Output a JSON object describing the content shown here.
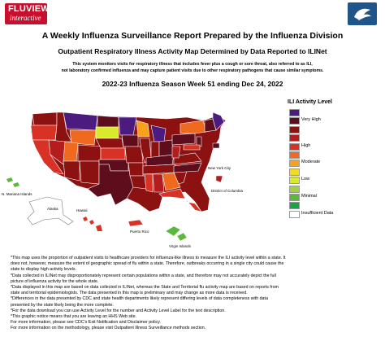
{
  "logo": {
    "line1": "FLUVIEW",
    "line2": "interactive"
  },
  "header": {
    "title": "A Weekly Influenza Surveillance Report Prepared by the Influenza Division",
    "subtitle": "Outpatient Respiratory Illness Activity Map Determined by Data Reported to ILINet",
    "desc_line1": "This system monitors visits for respiratory illness that includes fever plus a cough or sore throat, also referred to as ILI,",
    "desc_line2": "not laboratory confirmed influenza and may capture patient visits due to other respiratory pathogens that cause similar symptoms.",
    "week": "2022-23 Influenza Season Week 51 ending Dec 24, 2022"
  },
  "legend": {
    "title": "ILI Activity Level",
    "items": [
      {
        "label": "",
        "color": "#4b1b7f"
      },
      {
        "label": "Very High",
        "color": "#5d0d1b"
      },
      {
        "label": "",
        "color": "#8c1212"
      },
      {
        "label": "",
        "color": "#b31d1d"
      },
      {
        "label": "High",
        "color": "#d73225"
      },
      {
        "label": "",
        "color": "#ef6a1e"
      },
      {
        "label": "Moderate",
        "color": "#f7a21b"
      },
      {
        "label": "",
        "color": "#f5d91e"
      },
      {
        "label": "Low",
        "color": "#d8ea2a"
      },
      {
        "label": "",
        "color": "#9fd140"
      },
      {
        "label": "Minimal",
        "color": "#5cb83b"
      },
      {
        "label": "",
        "color": "#18a548"
      },
      {
        "label": "Insufficient Data",
        "color": "#ffffff"
      }
    ]
  },
  "map_labels": {
    "new_york_city": "New York City",
    "dc": "District of Columbia",
    "mariana": "N. Mariana Islands",
    "alaska": "Alaska",
    "hawaii": "Hawaii",
    "puerto_rico": "Puerto Rico",
    "virgin_islands": "Virgin Islands"
  },
  "notes": [
    "*This map uses the proportion of outpatient visits to healthcare providers for influenza-like illness to measure the ILI activity level within a state. It",
    "does not, however, measure the extent of geographic spread of flu within a state. Therefore, outbreaks occurring in a single city could cause the",
    "state to display high activity levels.",
    "*Data collected in ILINet may disproportionately represent certain populations within a state, and therefore may not accurately depict the full",
    "picture of influenza activity for the whole state.",
    "*Data displayed in this map are based on data collected in ILINet, whereas the State and Territorial flu activity map are based on reports from",
    "state and territorial epidemiologists. The data presented in this map is preliminary and may change as more data is received.",
    "*Differences in the data presented by CDC and state health departments likely represent differing levels of data completeness with data",
    "presented by the state likely being the more complete.",
    "*For the data download you can use Activity Level for the number and Activity Level Label for the text description.",
    "*This graphic notice means that you are leaving an HHS Web site.",
    "For more information, please see CDC's Exit Notification and Disclaimer policy.",
    "For more information on the methodology, please visit Outpatient Illness Surveillance methods section."
  ]
}
